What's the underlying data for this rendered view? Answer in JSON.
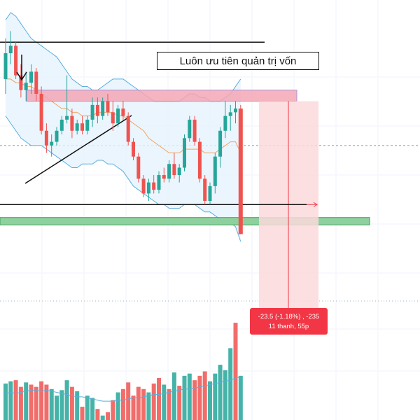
{
  "annotation": {
    "text": "Luôn ưu tiên quản trị vốn"
  },
  "measure": {
    "line1": "-23.5 (-1.18%) , -235",
    "line2": "11 thanh, 55p"
  },
  "colors": {
    "up": "#26a69a",
    "down": "#ef5350",
    "band": "#5aaee0",
    "band_fill": "#e6f2fc",
    "ma": "#f0a35e",
    "resistance_zone": "#f4a7b5",
    "support_zone": "#8fd19e",
    "measure_fill": "#fcd9dc",
    "measure_line": "#f23645",
    "volume_ma": "#5aaee0"
  },
  "chart_data": {
    "type": "candlestick",
    "price_range": [
      46,
      108
    ],
    "candles": [
      {
        "o": 90,
        "h": 101,
        "l": 86,
        "c": 97
      },
      {
        "o": 97,
        "h": 103,
        "l": 94,
        "c": 99
      },
      {
        "o": 99,
        "h": 100,
        "l": 90,
        "c": 91
      },
      {
        "o": 91,
        "h": 94,
        "l": 85,
        "c": 87
      },
      {
        "o": 87,
        "h": 92,
        "l": 84,
        "c": 89
      },
      {
        "o": 89,
        "h": 94,
        "l": 86,
        "c": 92
      },
      {
        "o": 92,
        "h": 93,
        "l": 84,
        "c": 86
      },
      {
        "o": 86,
        "h": 88,
        "l": 75,
        "c": 76
      },
      {
        "o": 76,
        "h": 78,
        "l": 70,
        "c": 72
      },
      {
        "o": 72,
        "h": 75,
        "l": 69,
        "c": 73
      },
      {
        "o": 73,
        "h": 77,
        "l": 72,
        "c": 76
      },
      {
        "o": 76,
        "h": 80,
        "l": 75,
        "c": 79
      },
      {
        "o": 79,
        "h": 91,
        "l": 78,
        "c": 80
      },
      {
        "o": 80,
        "h": 82,
        "l": 74,
        "c": 76
      },
      {
        "o": 76,
        "h": 79,
        "l": 75,
        "c": 78
      },
      {
        "o": 78,
        "h": 80,
        "l": 75,
        "c": 76
      },
      {
        "o": 76,
        "h": 80,
        "l": 75,
        "c": 79
      },
      {
        "o": 79,
        "h": 85,
        "l": 77,
        "c": 83
      },
      {
        "o": 83,
        "h": 85,
        "l": 78,
        "c": 80
      },
      {
        "o": 80,
        "h": 85,
        "l": 79,
        "c": 84
      },
      {
        "o": 84,
        "h": 86,
        "l": 80,
        "c": 81
      },
      {
        "o": 81,
        "h": 84,
        "l": 76,
        "c": 78
      },
      {
        "o": 78,
        "h": 83,
        "l": 77,
        "c": 82
      },
      {
        "o": 82,
        "h": 84,
        "l": 79,
        "c": 80
      },
      {
        "o": 80,
        "h": 81,
        "l": 72,
        "c": 73
      },
      {
        "o": 73,
        "h": 74,
        "l": 68,
        "c": 69
      },
      {
        "o": 69,
        "h": 70,
        "l": 62,
        "c": 63
      },
      {
        "o": 63,
        "h": 64,
        "l": 58,
        "c": 59
      },
      {
        "o": 59,
        "h": 63,
        "l": 57,
        "c": 62
      },
      {
        "o": 62,
        "h": 64,
        "l": 59,
        "c": 60
      },
      {
        "o": 60,
        "h": 65,
        "l": 59,
        "c": 64
      },
      {
        "o": 64,
        "h": 66,
        "l": 62,
        "c": 63
      },
      {
        "o": 63,
        "h": 68,
        "l": 62,
        "c": 67
      },
      {
        "o": 67,
        "h": 70,
        "l": 63,
        "c": 64
      },
      {
        "o": 64,
        "h": 67,
        "l": 62,
        "c": 66
      },
      {
        "o": 66,
        "h": 75,
        "l": 65,
        "c": 74
      },
      {
        "o": 74,
        "h": 80,
        "l": 73,
        "c": 79
      },
      {
        "o": 79,
        "h": 80,
        "l": 72,
        "c": 73
      },
      {
        "o": 73,
        "h": 74,
        "l": 62,
        "c": 63
      },
      {
        "o": 63,
        "h": 64,
        "l": 56,
        "c": 57
      },
      {
        "o": 57,
        "h": 62,
        "l": 56,
        "c": 61
      },
      {
        "o": 61,
        "h": 70,
        "l": 59,
        "c": 69
      },
      {
        "o": 69,
        "h": 77,
        "l": 66,
        "c": 76
      },
      {
        "o": 76,
        "h": 84,
        "l": 74,
        "c": 80
      },
      {
        "o": 80,
        "h": 83,
        "l": 76,
        "c": 81
      },
      {
        "o": 81,
        "h": 84,
        "l": 78,
        "c": 82
      },
      {
        "o": 82,
        "h": 83,
        "l": 48,
        "c": 48
      }
    ],
    "bollinger": {
      "upper": [
        106,
        108,
        107,
        105,
        103,
        101,
        100,
        99,
        98,
        97,
        96,
        94,
        92,
        90,
        89,
        88,
        88,
        87,
        87,
        88,
        89,
        90,
        90,
        90,
        89,
        88,
        87,
        86,
        85,
        84,
        84,
        84,
        84,
        84,
        84,
        85,
        86,
        86,
        85,
        85,
        84,
        84,
        84,
        85,
        86,
        88,
        90
      ],
      "middle": [
        92,
        92,
        91,
        90,
        89,
        89,
        88,
        87,
        86,
        85,
        84,
        83,
        82,
        81,
        80,
        80,
        80,
        80,
        81,
        81,
        81,
        81,
        81,
        80,
        79,
        78,
        77,
        76,
        75,
        74,
        73,
        72,
        72,
        71,
        71,
        72,
        72,
        72,
        72,
        71,
        70,
        70,
        70,
        70,
        70,
        70,
        69
      ],
      "lower": [
        80,
        78,
        76,
        74,
        73,
        72,
        72,
        72,
        71,
        70,
        69,
        68,
        67,
        66,
        66,
        67,
        67,
        67,
        68,
        68,
        67,
        67,
        66,
        65,
        63,
        61,
        60,
        59,
        58,
        57,
        56,
        56,
        55,
        55,
        55,
        56,
        56,
        56,
        55,
        54,
        54,
        53,
        52,
        52,
        51,
        50,
        46
      ]
    },
    "ma": [
      90,
      90,
      89,
      89,
      88,
      88,
      87,
      86,
      85,
      84,
      83,
      82,
      82,
      81,
      81,
      80,
      80,
      80,
      81,
      81,
      81,
      81,
      80,
      80,
      79,
      78,
      77,
      76,
      74,
      73,
      72,
      71,
      70,
      70,
      70,
      71,
      71,
      71,
      71,
      70,
      70,
      70,
      71,
      72,
      73,
      73,
      70
    ],
    "trendline_start_index": 2,
    "trendline_end_index": 22,
    "resistance_high": 100,
    "resistance_zone": [
      84,
      87
    ],
    "range_low": 56,
    "support_zone": [
      50.5,
      52.5
    ],
    "current_price_line": 72,
    "target_price": 25.5,
    "volume": [
      {
        "v": 33,
        "d": 0
      },
      {
        "v": 35,
        "d": 0
      },
      {
        "v": 36,
        "d": 1
      },
      {
        "v": 30,
        "d": 1
      },
      {
        "v": 34,
        "d": 0
      },
      {
        "v": 32,
        "d": 1
      },
      {
        "v": 30,
        "d": 1
      },
      {
        "v": 35,
        "d": 1
      },
      {
        "v": 32,
        "d": 1
      },
      {
        "v": 28,
        "d": 0
      },
      {
        "v": 22,
        "d": 0
      },
      {
        "v": 27,
        "d": 0
      },
      {
        "v": 36,
        "d": 0
      },
      {
        "v": 30,
        "d": 1
      },
      {
        "v": 26,
        "d": 0
      },
      {
        "v": 12,
        "d": 1
      },
      {
        "v": 22,
        "d": 0
      },
      {
        "v": 20,
        "d": 0
      },
      {
        "v": 10,
        "d": 1
      },
      {
        "v": 4,
        "d": 0
      },
      {
        "v": 7,
        "d": 1
      },
      {
        "v": 18,
        "d": 1
      },
      {
        "v": 25,
        "d": 0
      },
      {
        "v": 28,
        "d": 1
      },
      {
        "v": 34,
        "d": 1
      },
      {
        "v": 22,
        "d": 1
      },
      {
        "v": 30,
        "d": 1
      },
      {
        "v": 28,
        "d": 1
      },
      {
        "v": 25,
        "d": 0
      },
      {
        "v": 33,
        "d": 1
      },
      {
        "v": 38,
        "d": 1
      },
      {
        "v": 32,
        "d": 0
      },
      {
        "v": 28,
        "d": 1
      },
      {
        "v": 43,
        "d": 0
      },
      {
        "v": 31,
        "d": 1
      },
      {
        "v": 40,
        "d": 0
      },
      {
        "v": 42,
        "d": 0
      },
      {
        "v": 36,
        "d": 1
      },
      {
        "v": 40,
        "d": 1
      },
      {
        "v": 44,
        "d": 1
      },
      {
        "v": 35,
        "d": 0
      },
      {
        "v": 42,
        "d": 0
      },
      {
        "v": 50,
        "d": 0
      },
      {
        "v": 45,
        "d": 0
      },
      {
        "v": 65,
        "d": 0
      },
      {
        "v": 88,
        "d": 1
      },
      {
        "v": 40,
        "d": 0
      }
    ],
    "volume_ma": [
      24,
      25,
      24,
      25,
      26,
      27,
      27,
      26,
      27,
      26,
      25,
      24,
      23,
      22,
      21,
      21,
      20,
      19,
      18,
      17,
      17,
      17,
      18,
      18,
      19,
      20,
      20,
      21,
      22,
      23,
      23,
      24,
      25,
      26,
      27,
      28,
      28,
      29,
      30,
      31,
      32,
      33,
      34,
      35,
      36,
      38,
      39
    ],
    "volume_max": 95
  }
}
